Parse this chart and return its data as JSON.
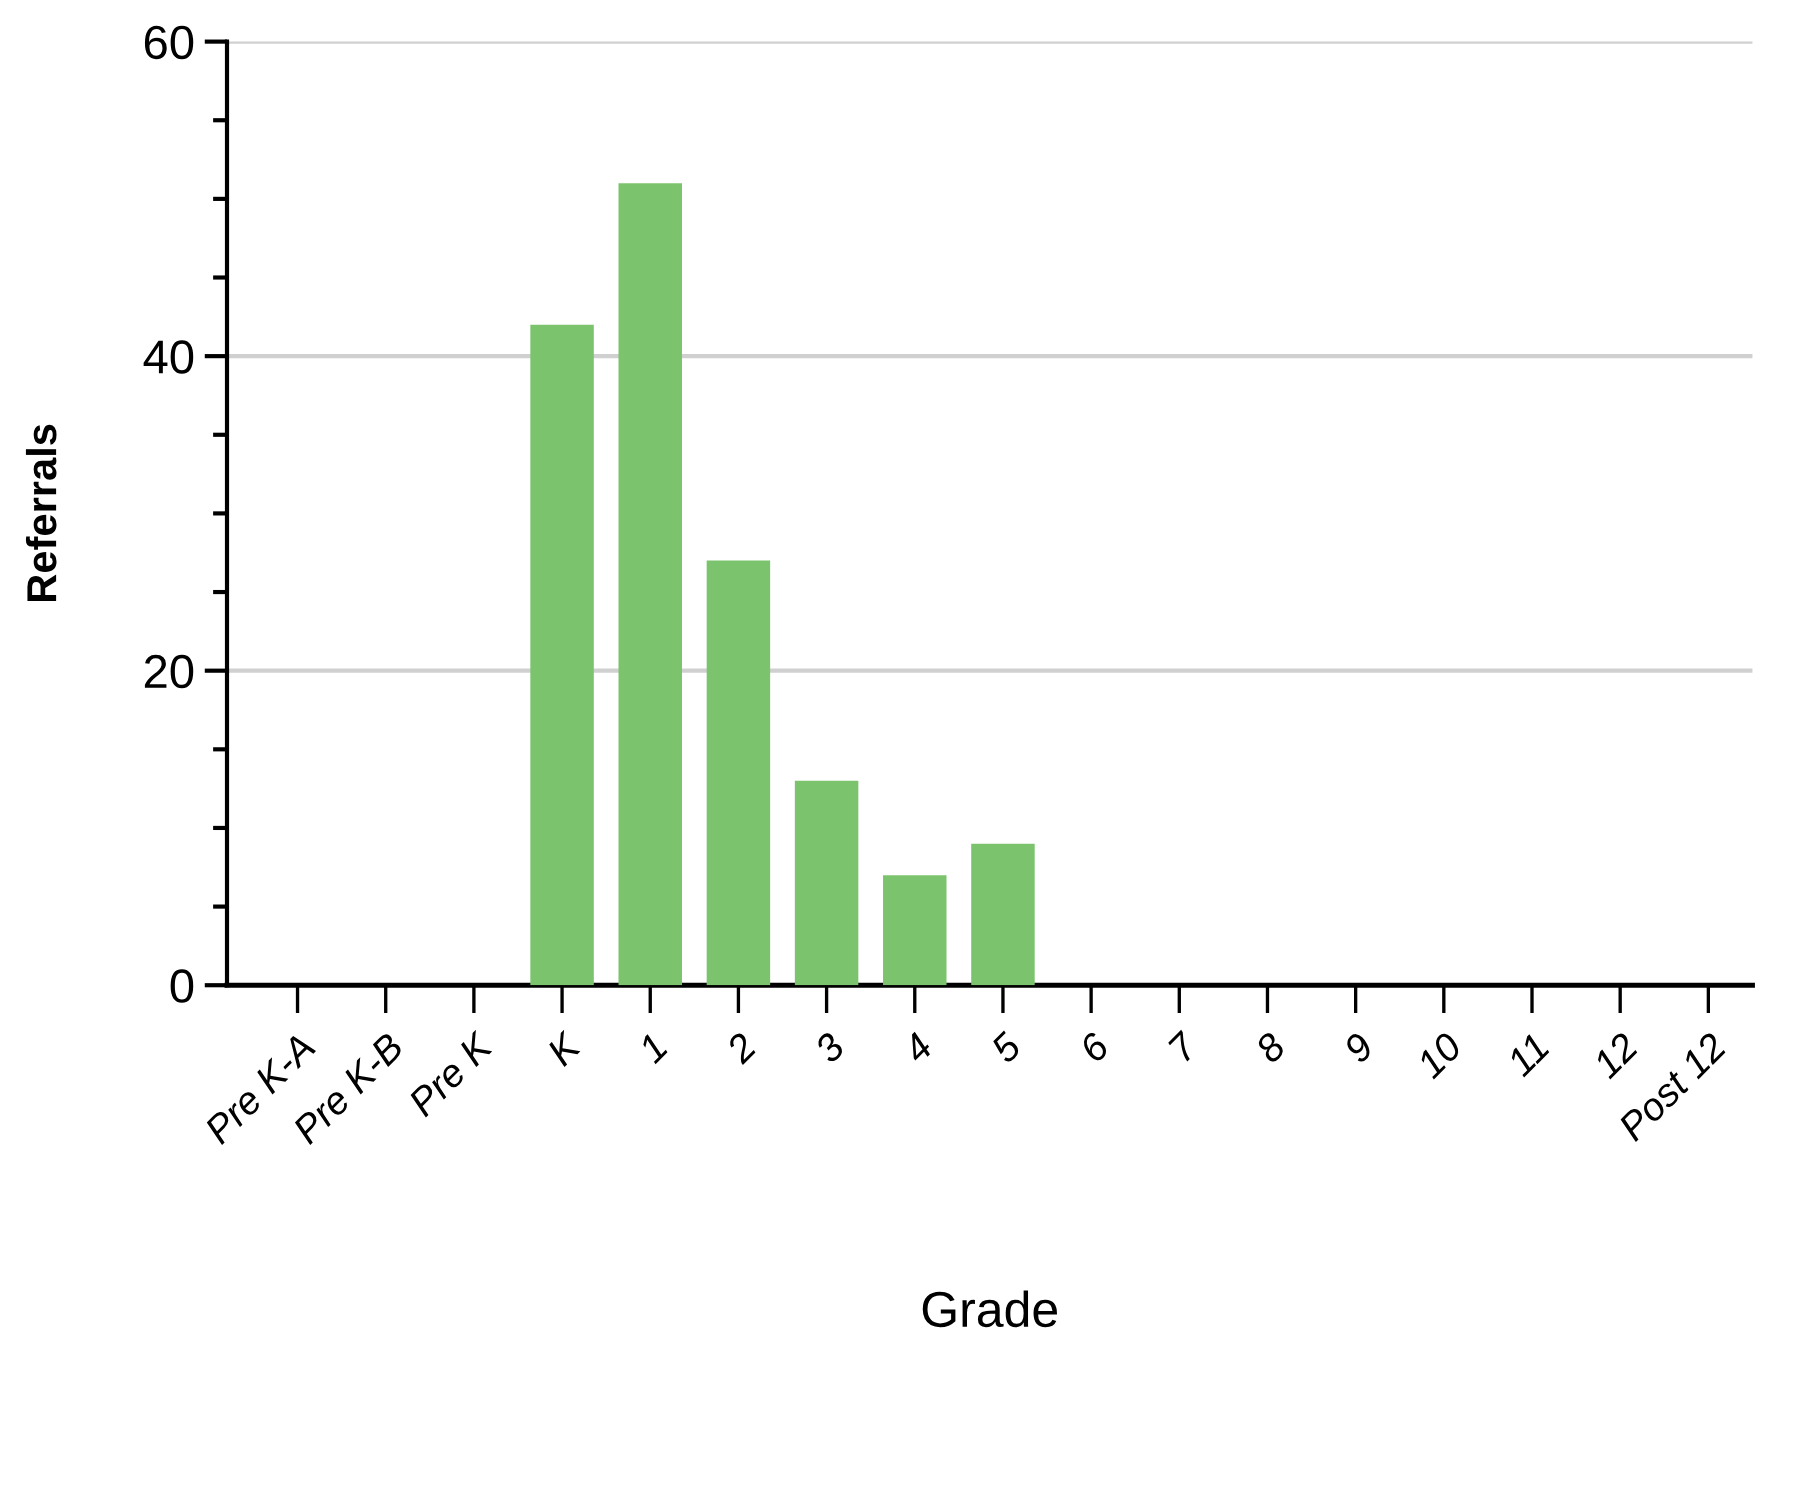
{
  "chart_data": {
    "type": "bar",
    "xlabel": "Grade",
    "ylabel": "Referrals",
    "categories": [
      "Pre K-A",
      "Pre K-B",
      "Pre K",
      "K",
      "1",
      "2",
      "3",
      "4",
      "5",
      "6",
      "7",
      "8",
      "9",
      "10",
      "11",
      "12",
      "Post 12"
    ],
    "values": [
      0,
      0,
      0,
      42,
      51,
      27,
      13,
      7,
      9,
      0,
      0,
      0,
      0,
      0,
      0,
      0,
      0
    ],
    "color": "#7bc46d",
    "ylim": [
      0,
      60
    ],
    "yticks": [
      0,
      20,
      40,
      60
    ],
    "grid": "y",
    "legend": false
  }
}
